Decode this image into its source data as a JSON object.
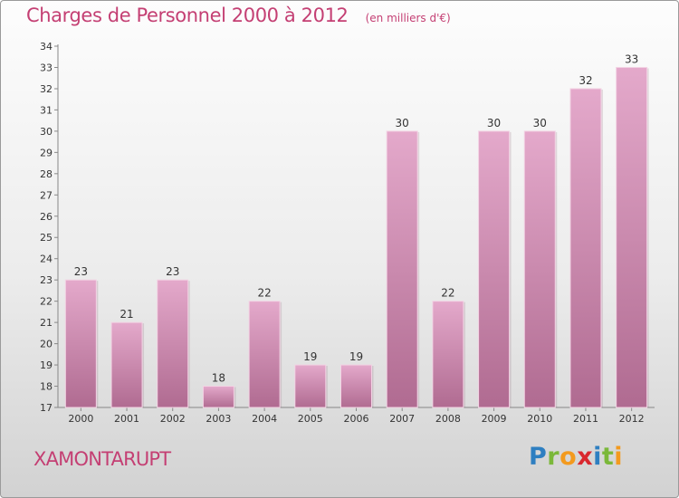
{
  "header": {
    "title": "Charges de Personnel 2000 à 2012",
    "subtitle": "(en milliers d'€)"
  },
  "footer": {
    "commune": "XAMONTARUPT",
    "logo": {
      "text": "Proxiti",
      "letters": [
        {
          "ch": "P",
          "color": "#2e7fc1"
        },
        {
          "ch": "r",
          "color": "#7bb83a"
        },
        {
          "ch": "o",
          "color": "#f39a1e"
        },
        {
          "ch": "x",
          "color": "#d9272e"
        },
        {
          "ch": "i",
          "color": "#2e7fc1"
        },
        {
          "ch": "t",
          "color": "#7bb83a"
        },
        {
          "ch": "i",
          "color": "#f39a1e"
        }
      ]
    }
  },
  "chart_data": {
    "type": "bar",
    "title": "Charges de Personnel 2000 à 2012",
    "subtitle": "(en milliers d'€)",
    "categories": [
      "2000",
      "2001",
      "2002",
      "2003",
      "2004",
      "2005",
      "2006",
      "2007",
      "2008",
      "2009",
      "2010",
      "2011",
      "2012"
    ],
    "values": [
      23,
      21,
      23,
      18,
      22,
      19,
      19,
      30,
      22,
      30,
      30,
      32,
      33
    ],
    "ylim": [
      17,
      34
    ],
    "yticks": [
      17,
      18,
      19,
      20,
      21,
      22,
      23,
      24,
      25,
      26,
      27,
      28,
      29,
      30,
      31,
      32,
      33,
      34
    ],
    "grid": false,
    "data_labels": true,
    "colors": {
      "bar_light": "#e4a9cb",
      "bar_dark": "#b06b91",
      "accent": "#c43f73"
    }
  }
}
